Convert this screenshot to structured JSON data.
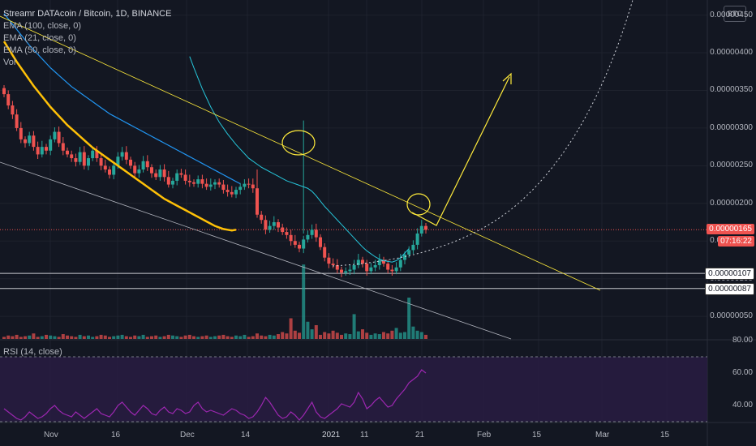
{
  "legend": {
    "title": "Streamr DATAcoin / Bitcoin, 1D, BINANCE",
    "ema1": "EMA (100, close, 0)",
    "ema2": "EMA (21, close, 0)",
    "ema3": "EMA (50, close, 0)",
    "vol": "Vol",
    "rsi": "RSI (14, close)"
  },
  "currency_badge": "BTC",
  "colors": {
    "bg": "#131722",
    "up": "#26a69a",
    "down": "#ef5350",
    "ema100": "#2196f3",
    "ema21": "#26c6da",
    "ema50": "#ffc107",
    "rsi": "#9c27b0",
    "drawing": "#ffeb3b"
  },
  "chart_data": [
    {
      "type": "candlestick",
      "title": "Streamr DATAcoin / Bitcoin, 1D, BINANCE",
      "y_unit": "BTC",
      "y_ticks": [
        "0.00000050",
        "0.00000100",
        "0.00000150",
        "0.00000200",
        "0.00000250",
        "0.00000300",
        "0.00000350",
        "0.00000400",
        "0.00000450"
      ],
      "price_tags": [
        {
          "value": "0.00000165",
          "style": "current"
        },
        {
          "value": "07:16:22",
          "style": "countdown"
        },
        {
          "value": "0.00000107",
          "style": "line"
        },
        {
          "value": "0.00000087",
          "style": "line"
        }
      ],
      "x_labels": [
        "Nov",
        "16",
        "Dec",
        "14",
        "2021",
        "11",
        "21",
        "Feb",
        "15",
        "Mar",
        "15"
      ],
      "close_series": [
        345,
        330,
        318,
        300,
        285,
        280,
        290,
        275,
        265,
        275,
        270,
        285,
        295,
        280,
        270,
        265,
        260,
        255,
        268,
        250,
        260,
        270,
        260,
        250,
        245,
        238,
        250,
        262,
        268,
        258,
        250,
        240,
        245,
        256,
        248,
        240,
        235,
        245,
        235,
        225,
        230,
        240,
        238,
        230,
        228,
        226,
        232,
        226,
        222,
        225,
        228,
        225,
        218,
        215,
        212,
        218,
        222,
        226,
        225,
        220,
        185,
        178,
        165,
        170,
        175,
        168,
        162,
        158,
        150,
        145,
        140,
        152,
        158,
        165,
        155,
        142,
        128,
        120,
        118,
        112,
        108,
        110,
        112,
        118,
        125,
        120,
        110,
        115,
        118,
        125,
        120,
        112,
        110,
        115,
        125,
        132,
        138,
        145,
        160,
        170,
        165
      ],
      "ema100": [
        452,
        445,
        438,
        431,
        424,
        417,
        410,
        404,
        398,
        392,
        386,
        380,
        375,
        370,
        365,
        360,
        355,
        351,
        347,
        343,
        339,
        335,
        331,
        327,
        323,
        319,
        316,
        313,
        310,
        307,
        304,
        301,
        298,
        295,
        292,
        289,
        286,
        283,
        280,
        277,
        274,
        271,
        268,
        265,
        262,
        259,
        256,
        253,
        250,
        247,
        244,
        241,
        238,
        235,
        232,
        229,
        226
      ],
      "ema50": [
        415,
        406,
        397,
        388,
        380,
        372,
        364,
        356,
        349,
        342,
        335,
        328,
        322,
        316,
        310,
        304,
        299,
        294,
        289,
        284,
        279,
        274,
        270,
        266,
        262,
        258,
        254,
        250,
        246,
        242,
        238,
        234,
        230,
        226,
        222,
        218,
        214,
        210,
        206,
        203,
        200,
        197,
        194,
        191,
        188,
        185,
        182,
        179,
        176,
        173,
        170,
        168,
        166,
        165,
        164,
        165
      ],
      "ema21": [
        395,
        380,
        366,
        352,
        340,
        328,
        318,
        308,
        300,
        292,
        285,
        278,
        272,
        266,
        260,
        256,
        252,
        248,
        245,
        242,
        239,
        236,
        233,
        230,
        228,
        226,
        224,
        222,
        220,
        216,
        210,
        203,
        196,
        190,
        184,
        178,
        172,
        166,
        160,
        154,
        148,
        142,
        137,
        133,
        129,
        126,
        124,
        123,
        122,
        124,
        128,
        134,
        140
      ],
      "volume": [
        3,
        5,
        4,
        6,
        3,
        4,
        5,
        8,
        3,
        4,
        6,
        5,
        4,
        3,
        7,
        5,
        4,
        3,
        6,
        4,
        5,
        3,
        4,
        6,
        5,
        3,
        4,
        5,
        6,
        4,
        3,
        5,
        4,
        6,
        3,
        4,
        5,
        3,
        4,
        6,
        5,
        4,
        3,
        5,
        6,
        4,
        3,
        4,
        5,
        3,
        4,
        5,
        6,
        4,
        3,
        5,
        4,
        6,
        3,
        4,
        8,
        5,
        4,
        6,
        5,
        7,
        10,
        8,
        30,
        12,
        9,
        108,
        25,
        14,
        20,
        6,
        10,
        8,
        12,
        9,
        6,
        8,
        7,
        36,
        11,
        14,
        9,
        6,
        8,
        7,
        10,
        8,
        12,
        16,
        9,
        10,
        60,
        18,
        12,
        10,
        6
      ]
    },
    {
      "type": "line",
      "title": "RSI (14, close)",
      "y_ticks": [
        "40.00",
        "60.00",
        "80.00"
      ],
      "ylim": [
        30,
        80
      ],
      "values": [
        38,
        36,
        34,
        32,
        31,
        33,
        36,
        34,
        32,
        33,
        35,
        38,
        40,
        37,
        35,
        34,
        33,
        36,
        34,
        32,
        34,
        36,
        38,
        35,
        34,
        33,
        36,
        40,
        42,
        39,
        36,
        34,
        37,
        40,
        38,
        35,
        34,
        37,
        39,
        36,
        35,
        38,
        37,
        35,
        36,
        40,
        42,
        38,
        36,
        37,
        36,
        35,
        34,
        36,
        38,
        37,
        35,
        34,
        32,
        33,
        36,
        40,
        45,
        42,
        38,
        34,
        32,
        33,
        36,
        34,
        31,
        34,
        38,
        42,
        36,
        33,
        32,
        34,
        36,
        38,
        41,
        40,
        39,
        42,
        48,
        44,
        38,
        40,
        43,
        45,
        42,
        39,
        40,
        44,
        47,
        50,
        54,
        56,
        58,
        62,
        60
      ]
    }
  ]
}
